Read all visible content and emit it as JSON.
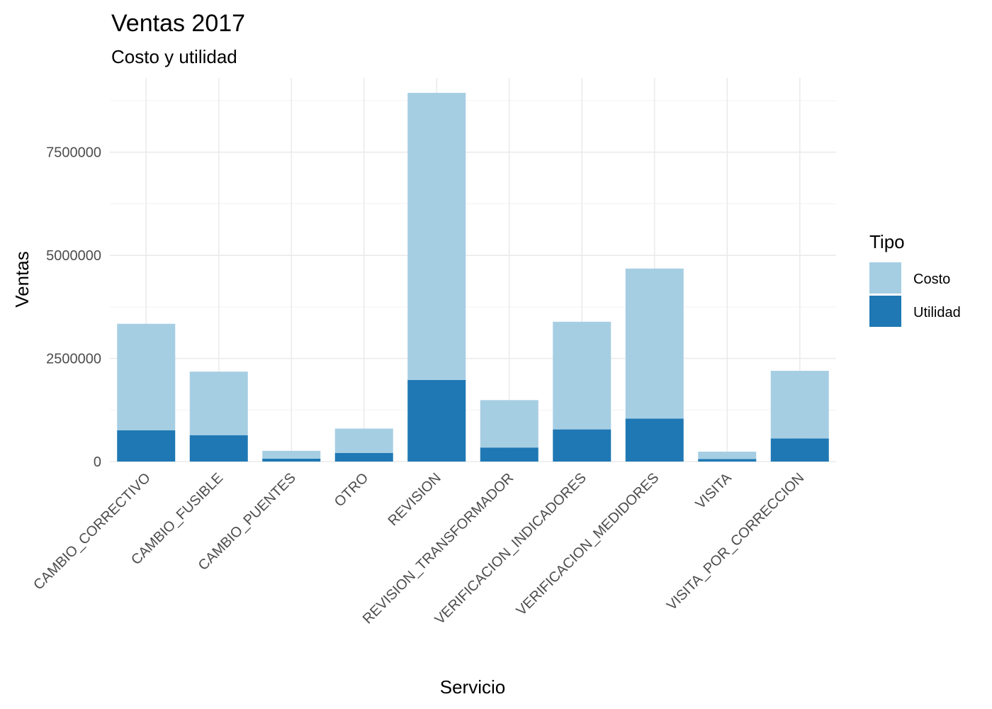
{
  "chart_data": {
    "type": "bar",
    "stacked": true,
    "title": "Ventas 2017",
    "subtitle": "Costo y utilidad",
    "xlabel": "Servicio",
    "ylabel": "Ventas",
    "ylim": [
      0,
      9300000
    ],
    "yticks": [
      0,
      2500000,
      5000000,
      7500000
    ],
    "ytick_labels": [
      "0",
      "2500000",
      "5000000",
      "7500000"
    ],
    "grid": true,
    "legend": {
      "title": "Tipo",
      "position": "right"
    },
    "categories": [
      "CAMBIO_CORRECTIVO",
      "CAMBIO_FUSIBLE",
      "CAMBIO_PUENTES",
      "OTRO",
      "REVISION",
      "REVISION_TRANSFORMADOR",
      "VERIFICACION_INDICADORES",
      "VERIFICACION_MEDIDORES",
      "VISITA",
      "VISITA_POR_CORRECCION"
    ],
    "series": [
      {
        "name": "Utilidad",
        "color": "#1f78b4",
        "values": [
          760000,
          640000,
          70000,
          210000,
          1980000,
          340000,
          780000,
          1040000,
          60000,
          560000
        ]
      },
      {
        "name": "Costo",
        "color": "#a6cee3",
        "values": [
          2580000,
          1540000,
          190000,
          590000,
          6960000,
          1150000,
          2610000,
          3640000,
          180000,
          1640000
        ]
      }
    ]
  }
}
